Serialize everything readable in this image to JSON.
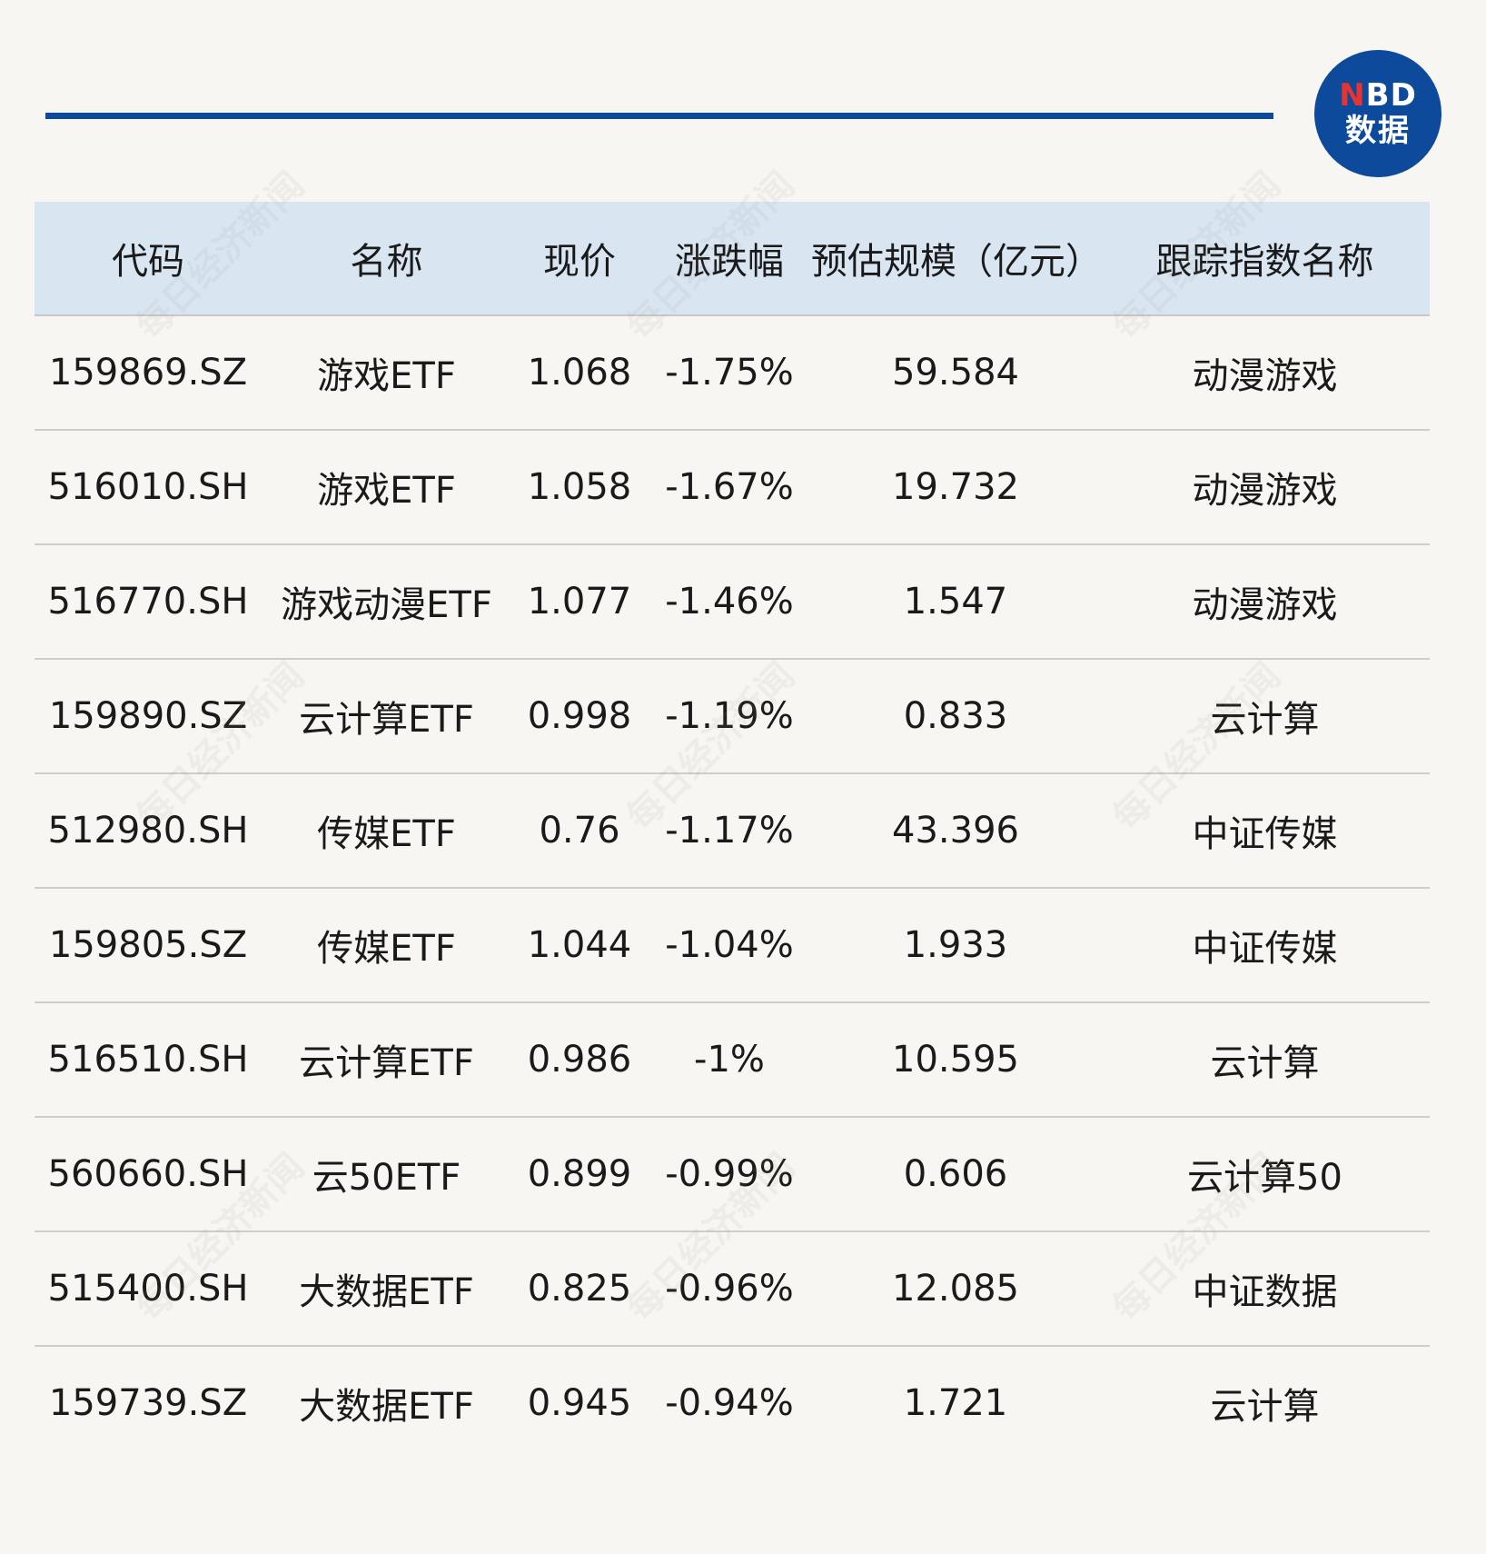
{
  "brand": {
    "logo_line1_accent": "N",
    "logo_line1_rest": "BD",
    "logo_line2": "数据",
    "color": "#0d4a9c",
    "accent_color": "#e8342f"
  },
  "watermark_text": "每日经济新闻",
  "chart_data": {
    "type": "table",
    "columns": [
      "代码",
      "名称",
      "现价",
      "涨跌幅",
      "预估规模（亿元）",
      "跟踪指数名称"
    ],
    "rows": [
      [
        "159869.SZ",
        "游戏ETF",
        "1.068",
        "-1.75%",
        "59.584",
        "动漫游戏"
      ],
      [
        "516010.SH",
        "游戏ETF",
        "1.058",
        "-1.67%",
        "19.732",
        "动漫游戏"
      ],
      [
        "516770.SH",
        "游戏动漫ETF",
        "1.077",
        "-1.46%",
        "1.547",
        "动漫游戏"
      ],
      [
        "159890.SZ",
        "云计算ETF",
        "0.998",
        "-1.19%",
        "0.833",
        "云计算"
      ],
      [
        "512980.SH",
        "传媒ETF",
        "0.76",
        "-1.17%",
        "43.396",
        "中证传媒"
      ],
      [
        "159805.SZ",
        "传媒ETF",
        "1.044",
        "-1.04%",
        "1.933",
        "中证传媒"
      ],
      [
        "516510.SH",
        "云计算ETF",
        "0.986",
        "-1%",
        "10.595",
        "云计算"
      ],
      [
        "560660.SH",
        "云50ETF",
        "0.899",
        "-0.99%",
        "0.606",
        "云计算50"
      ],
      [
        "515400.SH",
        "大数据ETF",
        "0.825",
        "-0.96%",
        "12.085",
        "中证数据"
      ],
      [
        "159739.SZ",
        "大数据ETF",
        "0.945",
        "-0.94%",
        "1.721",
        "云计算"
      ]
    ]
  }
}
